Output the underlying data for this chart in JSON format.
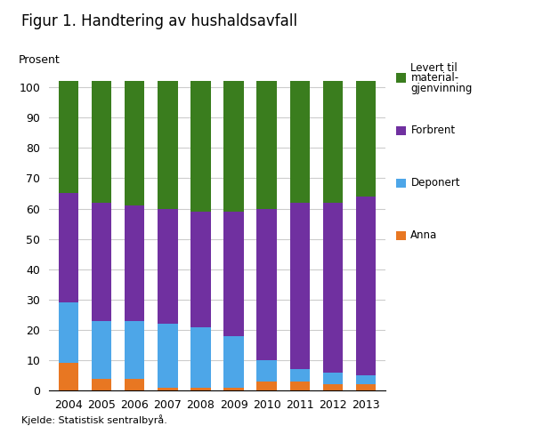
{
  "title": "Figur 1. Handtering av hushaldsavfall",
  "ylabel": "Prosent",
  "footnote": "Kjelde: Statistisk sentralbyrå.",
  "years": [
    2004,
    2005,
    2006,
    2007,
    2008,
    2009,
    2010,
    2011,
    2012,
    2013
  ],
  "anna": [
    9,
    4,
    4,
    1,
    1,
    1,
    3,
    3,
    2,
    2
  ],
  "deponert": [
    20,
    19,
    19,
    21,
    20,
    17,
    7,
    4,
    4,
    3
  ],
  "forbrent": [
    36,
    39,
    38,
    38,
    38,
    41,
    50,
    55,
    56,
    59
  ],
  "levert": [
    37,
    40,
    41,
    42,
    43,
    43,
    42,
    40,
    40,
    38
  ],
  "colors": {
    "anna": "#e87722",
    "deponert": "#4da6e8",
    "forbrent": "#7030a0",
    "levert": "#3a7d1e"
  },
  "legend_labels": {
    "levert": "Levert til\nmaterial-\ngjenvinning",
    "forbrent": "Forbrent",
    "deponert": "Deponert",
    "anna": "Anna"
  },
  "ylim": [
    0,
    103
  ],
  "yticks": [
    0,
    10,
    20,
    30,
    40,
    50,
    60,
    70,
    80,
    90,
    100
  ],
  "bar_width": 0.6,
  "figsize": [
    6.1,
    4.88
  ],
  "dpi": 100,
  "background_color": "#ffffff",
  "grid_color": "#cccccc"
}
